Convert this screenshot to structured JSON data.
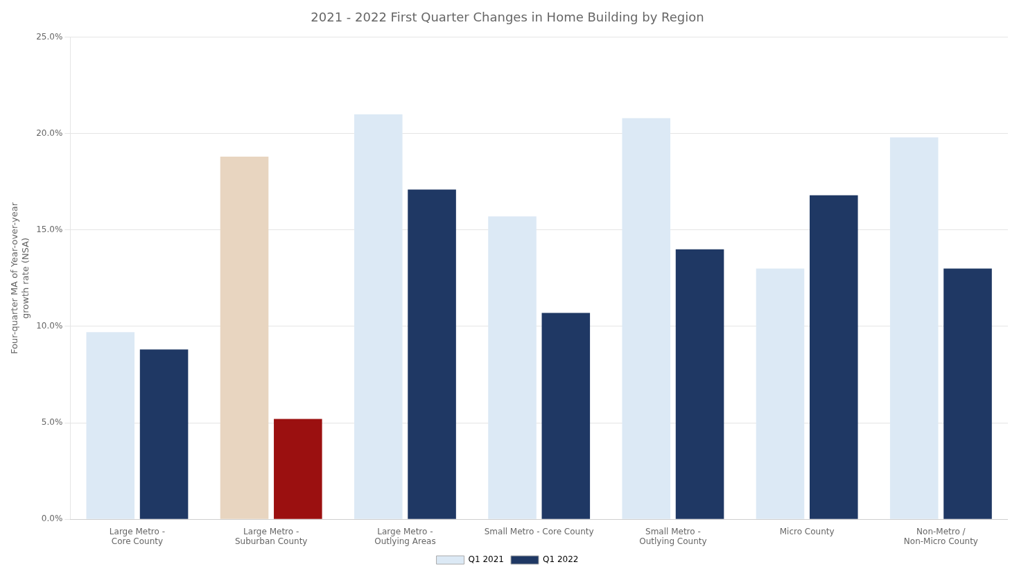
{
  "chart_data": {
    "type": "bar",
    "title": "2021 - 2022 First Quarter Changes in Home Building by Region",
    "ylabel": "Four-quarter MA of Year-over-year\ngrowth rate (NSA)",
    "categories": [
      "Large Metro -\nCore County",
      "Large Metro -\nSuburban County",
      "Large Metro -\nOutlying Areas",
      "Small Metro - Core County",
      "Small Metro -\nOutlying County",
      "Micro County",
      "Non-Metro /\nNon-Micro County"
    ],
    "series": [
      {
        "name": "Q1 2021",
        "color": "#dce9f5",
        "colors": [
          "#dce9f5",
          "#e8d5c0",
          "#dce9f5",
          "#dce9f5",
          "#dce9f5",
          "#dce9f5",
          "#dce9f5"
        ],
        "values": [
          0.097,
          0.188,
          0.21,
          0.157,
          0.208,
          0.13,
          0.198
        ]
      },
      {
        "name": "Q1 2022",
        "color": "#1f3864",
        "colors": [
          "#1f3864",
          "#9b1010",
          "#1f3864",
          "#1f3864",
          "#1f3864",
          "#1f3864",
          "#1f3864"
        ],
        "values": [
          0.088,
          0.052,
          0.171,
          0.107,
          0.14,
          0.168,
          0.13
        ]
      }
    ],
    "ylim": [
      0.0,
      0.25
    ],
    "yticks": [
      {
        "value": 0.0,
        "label": "0.0%"
      },
      {
        "value": 0.05,
        "label": "5.0%"
      },
      {
        "value": 0.1,
        "label": "10.0%"
      },
      {
        "value": 0.15,
        "label": "15.0%"
      },
      {
        "value": 0.2,
        "label": "20.0%"
      },
      {
        "value": 0.25,
        "label": "25.0%"
      }
    ],
    "grid": true,
    "legend": "bottom"
  }
}
